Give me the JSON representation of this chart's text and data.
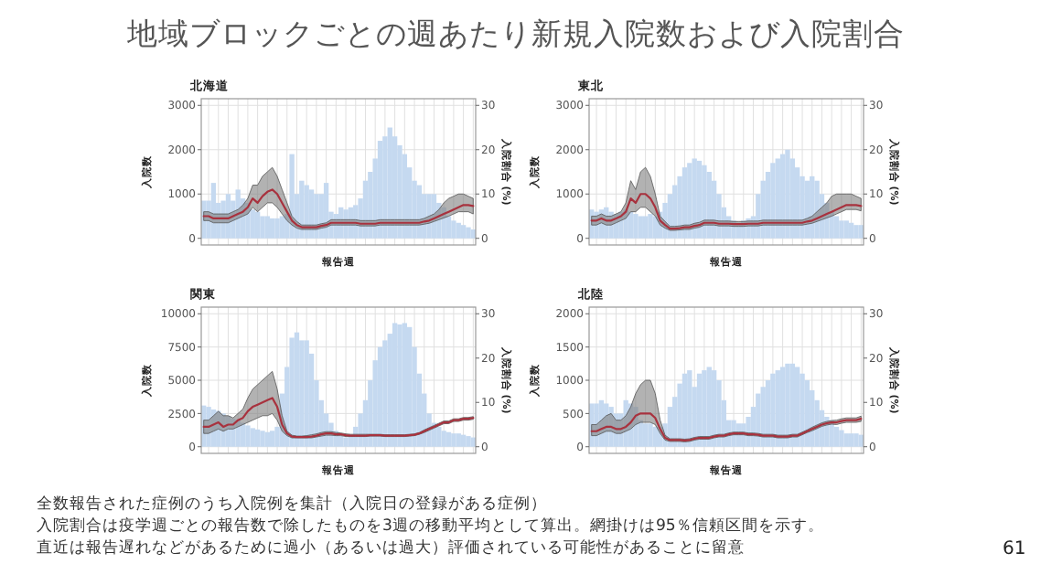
{
  "chart_data": [
    {
      "type": "other",
      "title": "地域ブロックごとの週あたり新規入院数および入院割合",
      "annotations": [
        "全数報告された症例のうち入院例を集計（入院日の登録がある症例）",
        "入院割合は疫学週ごとの報告数で除したものを3週の移動平均として算出。網掛けは95％信頼区間を示す。",
        "直近は報告遅れなどがあるために過小（あるいは過大）評価されている可能性があることに留意",
        "61"
      ]
    },
    {
      "type": "bar",
      "title": "北海道",
      "xlabel": "報告週",
      "ylabel": "入院数",
      "y2label": "入院割合 (%)",
      "grid": true,
      "categories": [
        null,
        null,
        null,
        null,
        null,
        null,
        null,
        null,
        null,
        null,
        null,
        null,
        null,
        null,
        null,
        null,
        null,
        null,
        null,
        null,
        null,
        null,
        null,
        null,
        null,
        null,
        null,
        null,
        null,
        null,
        null,
        null,
        null,
        null,
        null,
        null,
        null,
        null,
        null,
        null,
        null,
        null,
        null,
        null,
        null,
        null,
        null,
        null,
        null,
        null,
        null,
        null,
        null,
        null,
        null,
        null
      ],
      "ylim": [
        -150,
        3150
      ],
      "yticks": [
        0,
        1000,
        2000,
        3000
      ],
      "y2lim": [
        -1.5,
        31.5
      ],
      "y2ticks": [
        0,
        10,
        20,
        30
      ],
      "series": [
        {
          "type": "bar",
          "color": "#c5d9f0",
          "values": [
            850,
            850,
            1250,
            800,
            850,
            1000,
            850,
            1100,
            900,
            800,
            650,
            600,
            500,
            500,
            450,
            450,
            500,
            550,
            1900,
            1000,
            1300,
            1200,
            1100,
            1000,
            1000,
            1250,
            600,
            550,
            700,
            650,
            700,
            750,
            900,
            1300,
            1500,
            1800,
            2200,
            2300,
            2500,
            2300,
            2100,
            1900,
            1600,
            1300,
            1200,
            1000,
            1000,
            1000,
            800,
            700,
            500,
            400,
            350,
            300,
            250,
            200
          ]
        },
        {
          "type": "line",
          "axis": "y2",
          "color": "#a8323e",
          "values": [
            5,
            5,
            4.5,
            4.5,
            4.5,
            4.5,
            5,
            5.5,
            6,
            7,
            9,
            8,
            9.5,
            10.5,
            11,
            10,
            8,
            6,
            4,
            3,
            2.5,
            2.5,
            2.5,
            2.5,
            2.8,
            3,
            3.5,
            3.5,
            3.5,
            3.5,
            3.5,
            3.5,
            3.3,
            3.3,
            3.3,
            3.3,
            3.5,
            3.5,
            3.5,
            3.5,
            3.5,
            3.5,
            3.5,
            3.5,
            3.5,
            3.8,
            4,
            4.5,
            5,
            5.5,
            6,
            6.5,
            7,
            7.5,
            7.5,
            7.3
          ],
          "lower": [
            4,
            4,
            3.5,
            3.5,
            3.5,
            3.5,
            4,
            4.5,
            5,
            5.5,
            7,
            6,
            7,
            8,
            8,
            7,
            5.5,
            4,
            3,
            2.3,
            2,
            2,
            2,
            2,
            2.3,
            2.5,
            3,
            3,
            3,
            3,
            3,
            3,
            2.8,
            2.8,
            2.8,
            2.8,
            3,
            3,
            3,
            3,
            3,
            3,
            3,
            3,
            3,
            3.2,
            3.4,
            3.8,
            4.2,
            4.6,
            5,
            5.5,
            6,
            6,
            6,
            5.5
          ],
          "upper": [
            6,
            6,
            5.5,
            5.5,
            5.5,
            5.5,
            6,
            6.5,
            7.5,
            9,
            12,
            12,
            14,
            15,
            16,
            14,
            11,
            8,
            5,
            3.8,
            3,
            3,
            3,
            3,
            3.3,
            3.5,
            4.2,
            4.2,
            4.2,
            4.2,
            4.2,
            4.2,
            4,
            4,
            4,
            4,
            4.2,
            4.2,
            4.2,
            4.2,
            4.2,
            4.2,
            4.2,
            4.2,
            4.2,
            4.5,
            5,
            5.5,
            6.5,
            8,
            9,
            9.5,
            10,
            10,
            9.5,
            9
          ]
        }
      ]
    },
    {
      "type": "bar",
      "title": "東北",
      "xlabel": "報告週",
      "ylabel": "入院数",
      "y2label": "入院割合 (%)",
      "grid": true,
      "categories": [
        null,
        null,
        null,
        null,
        null,
        null,
        null,
        null,
        null,
        null,
        null,
        null,
        null,
        null,
        null,
        null,
        null,
        null,
        null,
        null,
        null,
        null,
        null,
        null,
        null,
        null,
        null,
        null,
        null,
        null,
        null,
        null,
        null,
        null,
        null,
        null,
        null,
        null,
        null,
        null,
        null,
        null,
        null,
        null,
        null,
        null,
        null,
        null,
        null,
        null,
        null,
        null,
        null,
        null,
        null,
        null
      ],
      "ylim": [
        -150,
        3150
      ],
      "yticks": [
        0,
        1000,
        2000,
        3000
      ],
      "y2lim": [
        -1.5,
        31.5
      ],
      "y2ticks": [
        0,
        10,
        20,
        30
      ],
      "series": [
        {
          "type": "bar",
          "color": "#c5d9f0",
          "values": [
            650,
            600,
            650,
            700,
            600,
            550,
            600,
            650,
            600,
            550,
            500,
            500,
            550,
            500,
            600,
            800,
            1000,
            1200,
            1400,
            1600,
            1700,
            1800,
            1750,
            1650,
            1500,
            1300,
            1000,
            700,
            500,
            400,
            350,
            400,
            450,
            500,
            1000,
            1300,
            1500,
            1700,
            1800,
            1900,
            2000,
            1800,
            1600,
            1400,
            1300,
            1400,
            1300,
            1000,
            800,
            600,
            500,
            400,
            400,
            350,
            300,
            300
          ]
        },
        {
          "type": "line",
          "axis": "y2",
          "color": "#a8323e",
          "values": [
            4,
            4,
            4.5,
            4,
            4,
            4.5,
            5,
            6,
            9,
            8,
            10,
            10,
            9,
            7,
            4,
            3,
            2.2,
            2.2,
            2.3,
            2.5,
            2.5,
            2.8,
            3,
            3.5,
            3.5,
            3.5,
            3.3,
            3.3,
            3.3,
            3.2,
            3.2,
            3.2,
            3.3,
            3.3,
            3.3,
            3.5,
            3.5,
            3.5,
            3.5,
            3.5,
            3.5,
            3.5,
            3.5,
            3.5,
            3.8,
            4,
            4.5,
            5,
            5.5,
            6,
            6.5,
            7,
            7.5,
            7.5,
            7.5,
            7.3
          ],
          "lower": [
            3,
            3,
            3.5,
            3,
            3,
            3.5,
            4,
            4.5,
            6,
            6,
            7,
            7,
            6,
            5,
            3,
            2.3,
            1.8,
            1.8,
            1.9,
            2,
            2,
            2.3,
            2.5,
            3,
            3,
            3,
            2.8,
            2.8,
            2.8,
            2.7,
            2.7,
            2.7,
            2.8,
            2.8,
            2.8,
            3,
            3,
            3,
            3,
            3,
            3,
            3,
            3,
            3,
            3.2,
            3.4,
            3.8,
            4.2,
            4.6,
            5,
            5.5,
            6,
            6.5,
            6.5,
            6.5,
            6.2
          ],
          "upper": [
            5,
            5,
            5.5,
            5,
            5,
            5.5,
            6,
            8,
            13,
            11,
            15,
            16,
            14,
            10,
            5,
            3.8,
            2.7,
            2.7,
            2.8,
            3,
            3,
            3.4,
            3.6,
            4.1,
            4.1,
            4.1,
            3.9,
            3.9,
            3.9,
            3.8,
            3.8,
            3.8,
            3.9,
            3.9,
            3.9,
            4.1,
            4.1,
            4.1,
            4.1,
            4.1,
            4.1,
            4.1,
            4.1,
            4.1,
            4.5,
            5,
            6,
            7,
            8,
            9.5,
            10,
            10,
            10,
            10,
            9.5,
            9
          ]
        }
      ]
    },
    {
      "type": "bar",
      "title": "関東",
      "xlabel": "報告週",
      "ylabel": "入院数",
      "y2label": "入院割合 (%)",
      "grid": true,
      "categories": [
        null,
        null,
        null,
        null,
        null,
        null,
        null,
        null,
        null,
        null,
        null,
        null,
        null,
        null,
        null,
        null,
        null,
        null,
        null,
        null,
        null,
        null,
        null,
        null,
        null,
        null,
        null,
        null,
        null,
        null,
        null,
        null,
        null,
        null,
        null,
        null,
        null,
        null,
        null,
        null,
        null,
        null,
        null,
        null,
        null,
        null,
        null,
        null,
        null,
        null,
        null,
        null,
        null,
        null,
        null,
        null
      ],
      "ylim": [
        -500,
        10500
      ],
      "yticks": [
        0,
        2500,
        5000,
        7500,
        10000
      ],
      "y2lim": [
        -1.5,
        31.5
      ],
      "y2ticks": [
        0,
        10,
        20,
        30
      ],
      "series": [
        {
          "type": "bar",
          "color": "#c5d9f0",
          "values": [
            3100,
            3000,
            2800,
            2700,
            2500,
            2300,
            2100,
            2000,
            1800,
            1600,
            1400,
            1300,
            1200,
            1100,
            1200,
            1500,
            4000,
            6000,
            8200,
            8600,
            8000,
            8000,
            7000,
            5000,
            3500,
            2500,
            1800,
            1200,
            800,
            700,
            900,
            1500,
            2500,
            3500,
            5000,
            6500,
            7500,
            8000,
            8500,
            9300,
            9200,
            9300,
            9000,
            7500,
            5500,
            4000,
            2500,
            1800,
            1500,
            1200,
            1100,
            1000,
            1000,
            900,
            800,
            700
          ]
        },
        {
          "type": "line",
          "axis": "y2",
          "color": "#a8323e",
          "values": [
            4.5,
            4.5,
            5,
            5.5,
            4.5,
            5,
            5,
            6,
            6.5,
            8,
            9,
            9.5,
            10,
            10.5,
            11,
            9,
            5,
            3,
            2.3,
            2.2,
            2.2,
            2.2,
            2.3,
            2.5,
            2.8,
            3,
            3,
            2.8,
            2.8,
            2.6,
            2.5,
            2.5,
            2.5,
            2.5,
            2.6,
            2.6,
            2.6,
            2.5,
            2.5,
            2.5,
            2.5,
            2.5,
            2.6,
            2.7,
            3,
            3.5,
            4,
            4.5,
            5,
            5.5,
            5.5,
            6,
            6,
            6.3,
            6.3,
            6.5
          ],
          "lower": [
            3,
            3,
            3.5,
            4,
            3.5,
            4,
            4,
            4.5,
            5,
            5.5,
            6,
            6.5,
            7,
            7,
            7.5,
            6,
            3.5,
            2.5,
            2,
            2,
            2,
            2,
            2,
            2.2,
            2.4,
            2.6,
            2.6,
            2.5,
            2.5,
            2.3,
            2.3,
            2.3,
            2.3,
            2.3,
            2.4,
            2.4,
            2.4,
            2.3,
            2.3,
            2.3,
            2.3,
            2.3,
            2.4,
            2.5,
            2.8,
            3.2,
            3.7,
            4.2,
            4.7,
            5.2,
            5.2,
            5.7,
            5.7,
            6,
            6,
            6.2
          ],
          "upper": [
            6,
            6,
            7,
            8,
            7,
            7,
            6.5,
            7.5,
            8.5,
            11,
            13,
            14,
            15,
            16,
            17,
            13,
            7,
            3.5,
            2.6,
            2.4,
            2.4,
            2.5,
            2.7,
            2.9,
            3.2,
            3.4,
            3.4,
            3.2,
            3.1,
            2.9,
            2.8,
            2.8,
            2.8,
            2.8,
            2.8,
            2.8,
            2.8,
            2.7,
            2.7,
            2.7,
            2.7,
            2.7,
            2.8,
            2.9,
            3.2,
            3.8,
            4.3,
            4.8,
            5.3,
            5.8,
            5.8,
            6.3,
            6.3,
            6.6,
            6.6,
            6.8
          ]
        }
      ]
    },
    {
      "type": "bar",
      "title": "北陸",
      "xlabel": "報告週",
      "ylabel": "入院数",
      "y2label": "入院割合 (%)",
      "grid": true,
      "categories": [
        null,
        null,
        null,
        null,
        null,
        null,
        null,
        null,
        null,
        null,
        null,
        null,
        null,
        null,
        null,
        null,
        null,
        null,
        null,
        null,
        null,
        null,
        null,
        null,
        null,
        null,
        null,
        null,
        null,
        null,
        null,
        null,
        null,
        null,
        null,
        null,
        null,
        null,
        null,
        null,
        null,
        null,
        null,
        null,
        null,
        null,
        null,
        null,
        null,
        null,
        null,
        null,
        null,
        null,
        null,
        null
      ],
      "ylim": [
        -100,
        2100
      ],
      "yticks": [
        0,
        500,
        1000,
        1500,
        2000
      ],
      "y2lim": [
        -1.5,
        31.5
      ],
      "y2ticks": [
        0,
        10,
        20,
        30
      ],
      "series": [
        {
          "type": "bar",
          "color": "#c5d9f0",
          "values": [
            650,
            650,
            700,
            650,
            600,
            500,
            500,
            700,
            650,
            600,
            400,
            350,
            350,
            300,
            300,
            350,
            600,
            750,
            950,
            1100,
            1150,
            900,
            1100,
            1150,
            1200,
            1150,
            1000,
            700,
            400,
            400,
            350,
            350,
            450,
            600,
            800,
            900,
            1000,
            1100,
            1150,
            1200,
            1250,
            1250,
            1200,
            1100,
            1000,
            850,
            700,
            550,
            450,
            400,
            300,
            250,
            200,
            200,
            200,
            180
          ]
        },
        {
          "type": "line",
          "axis": "y2",
          "color": "#a8323e",
          "values": [
            3.5,
            3.5,
            4,
            4.5,
            4.5,
            4,
            4,
            4.5,
            5.5,
            7,
            7.5,
            7.5,
            7.5,
            6.5,
            4,
            2,
            1.5,
            1.5,
            1.5,
            1.4,
            1.5,
            1.8,
            2,
            2,
            2,
            2.3,
            2.5,
            2.5,
            2.8,
            3,
            3,
            3,
            2.8,
            2.8,
            2.7,
            2.5,
            2.5,
            2.5,
            2.3,
            2.3,
            2.3,
            2.5,
            2.5,
            3,
            3.5,
            4,
            4.5,
            5,
            5.3,
            5.5,
            5.5,
            5.8,
            6,
            6,
            6,
            6.3
          ],
          "lower": [
            2.5,
            2.5,
            3,
            3.5,
            3.5,
            3,
            3,
            3.5,
            4,
            5,
            5.5,
            5.5,
            5.5,
            5,
            3,
            1.5,
            1.2,
            1.2,
            1.2,
            1.1,
            1.2,
            1.5,
            1.7,
            1.7,
            1.7,
            2,
            2.2,
            2.2,
            2.5,
            2.7,
            2.7,
            2.7,
            2.5,
            2.5,
            2.4,
            2.2,
            2.2,
            2.2,
            2,
            2,
            2,
            2.2,
            2.2,
            2.7,
            3.2,
            3.6,
            4.1,
            4.6,
            4.9,
            5.1,
            5,
            5.3,
            5.5,
            5.5,
            5.5,
            5.7
          ],
          "upper": [
            5,
            5,
            6,
            7,
            7.5,
            6,
            6,
            7,
            9,
            12,
            14,
            15,
            15,
            12,
            6,
            2.6,
            1.8,
            1.8,
            1.8,
            1.7,
            1.8,
            2.1,
            2.3,
            2.3,
            2.3,
            2.6,
            2.8,
            2.8,
            3.1,
            3.3,
            3.3,
            3.3,
            3.1,
            3.1,
            3,
            2.8,
            2.8,
            2.8,
            2.6,
            2.6,
            2.6,
            2.8,
            2.8,
            3.3,
            3.8,
            4.4,
            4.9,
            5.4,
            5.7,
            5.9,
            6,
            6.3,
            6.5,
            6.5,
            6.5,
            6.9
          ]
        }
      ]
    }
  ]
}
